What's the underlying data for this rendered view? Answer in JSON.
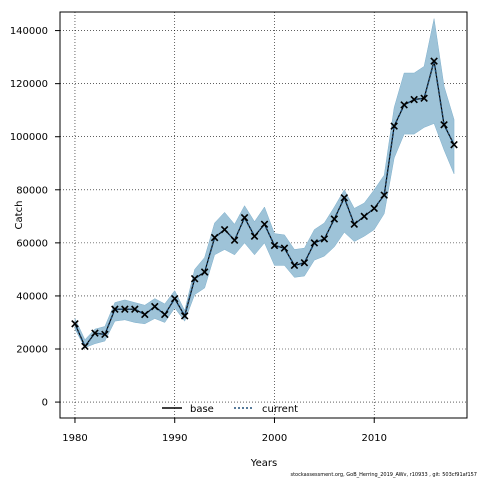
{
  "chart_data": {
    "type": "line",
    "xlabel": "Years",
    "ylabel": "Catch",
    "xlim": [
      1978.5,
      2019.3
    ],
    "ylim": [
      -6000,
      147000
    ],
    "x_ticks": [
      1980,
      1990,
      2000,
      2010
    ],
    "y_ticks": [
      0,
      20000,
      40000,
      60000,
      80000,
      100000,
      120000,
      140000
    ],
    "grid": true,
    "legend_position": "bottom-center",
    "x": [
      1980,
      1981,
      1982,
      1983,
      1984,
      1985,
      1986,
      1987,
      1988,
      1989,
      1990,
      1991,
      1992,
      1993,
      1994,
      1995,
      1996,
      1997,
      1998,
      1999,
      2000,
      2001,
      2002,
      2003,
      2004,
      2005,
      2006,
      2007,
      2008,
      2009,
      2010,
      2011,
      2012,
      2013,
      2014,
      2015,
      2016,
      2017,
      2018
    ],
    "series": [
      {
        "name": "base",
        "style": "solid",
        "color": "#000000",
        "values": [
          29500,
          21000,
          26000,
          25500,
          35000,
          35000,
          35000,
          33000,
          36000,
          33000,
          39000,
          32500,
          46500,
          49000,
          62000,
          65000,
          61000,
          69500,
          62500,
          67000,
          59000,
          58000,
          51500,
          52500,
          60000,
          61500,
          69000,
          77000,
          67000,
          70000,
          73000,
          78000,
          104000,
          112000,
          114000,
          114500,
          128500,
          104500,
          97000
        ]
      },
      {
        "name": "current",
        "style": "dotted",
        "color": "#1f4e79",
        "values": [
          29500,
          21000,
          26000,
          25500,
          35000,
          35000,
          35000,
          33000,
          36000,
          33000,
          39000,
          32500,
          46500,
          49000,
          62000,
          65000,
          61000,
          69500,
          62500,
          67000,
          59000,
          58000,
          51500,
          52500,
          60000,
          61500,
          69000,
          77000,
          67000,
          70000,
          73000,
          78000,
          104000,
          112000,
          114000,
          114500,
          128500,
          104500,
          97000
        ]
      }
    ],
    "band": {
      "color": "#9ec3d8",
      "lower": [
        27500,
        20500,
        22000,
        23000,
        30500,
        31000,
        30000,
        29500,
        31500,
        30000,
        35500,
        30500,
        40500,
        43000,
        55500,
        57500,
        55500,
        60000,
        55500,
        60000,
        51500,
        51500,
        47000,
        47500,
        53500,
        55000,
        58500,
        64000,
        60500,
        62500,
        65000,
        71000,
        92000,
        101000,
        101000,
        103500,
        105000,
        95000,
        86000
      ],
      "upper": [
        31500,
        23500,
        27500,
        28500,
        37500,
        38500,
        37500,
        36500,
        39000,
        37000,
        42000,
        34500,
        50000,
        54500,
        67500,
        71500,
        67000,
        74000,
        68000,
        73500,
        63500,
        63000,
        57500,
        58000,
        65000,
        67500,
        73500,
        80000,
        73000,
        75000,
        80000,
        85500,
        111000,
        124000,
        124000,
        126500,
        144500,
        119000,
        106500
      ]
    },
    "markers": [
      29500,
      21000,
      26000,
      25500,
      35000,
      35000,
      35000,
      33000,
      36000,
      33000,
      39000,
      32500,
      46500,
      49000,
      62000,
      65000,
      61000,
      69500,
      62500,
      67000,
      59000,
      58000,
      51500,
      52500,
      60000,
      61500,
      69000,
      77000,
      67000,
      70000,
      73000,
      78000,
      104000,
      112000,
      114000,
      114500,
      128500,
      104500,
      97000
    ]
  },
  "legend": {
    "base_label": "base",
    "current_label": "current"
  },
  "footer_text": "stockassessment.org, GoB_Herring_2019_AWv, r10933 , git: 503cf91af157"
}
